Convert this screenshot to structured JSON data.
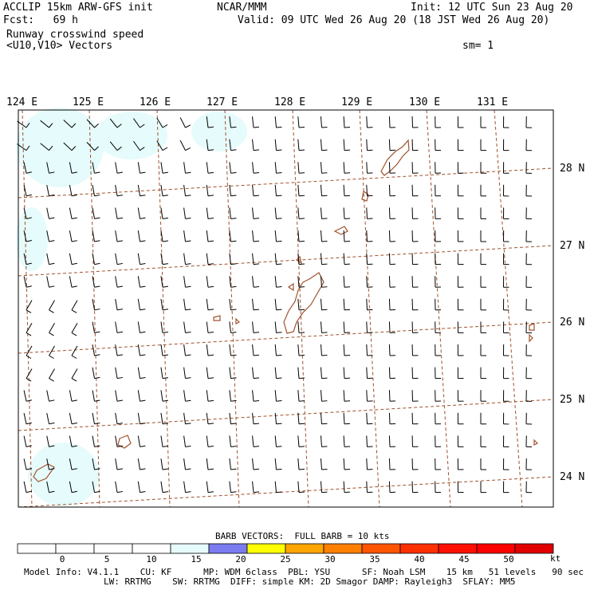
{
  "header": {
    "model": "ACCLIP 15km ARW-GFS init",
    "org": "NCAR/MMM",
    "init": "Init: 12 UTC Sun 23 Aug 20",
    "fcst": "Fcst:   69 h",
    "valid": "Valid: 09 UTC Wed 26 Aug 20 (18 JST Wed 26 Aug 20)",
    "field": "Runway crosswind speed",
    "vectors": "<U10,V10> Vectors",
    "smoothing": "sm= 1"
  },
  "map": {
    "lon_labels": [
      "124 E",
      "125 E",
      "126 E",
      "127 E",
      "128 E",
      "129 E",
      "130 E",
      "131 E"
    ],
    "lat_labels": [
      "28 N",
      "27 N",
      "26 N",
      "25 N",
      "24 N"
    ],
    "colors": {
      "background": "#ffffff",
      "calm_shade": "#e6fbfb",
      "coastline": "#a0522d",
      "gridline": "#a0522d",
      "barb": "#000000"
    }
  },
  "legend": {
    "title": "BARB VECTORS:  FULL BARB = 10 kts",
    "ticks": [
      "0",
      "5",
      "10",
      "15",
      "20",
      "25",
      "30",
      "35",
      "40",
      "45",
      "50"
    ],
    "unit": "kt",
    "colors": [
      "#ffffff",
      "#ffffff",
      "#ffffff",
      "#ffffff",
      "#e6fbfb",
      "#7b7bf0",
      "#ffff00",
      "#ffa500",
      "#ff7f00",
      "#ff5500",
      "#ff3000",
      "#ff1000",
      "#ff0000",
      "#e00000"
    ]
  },
  "footer": {
    "line1": "Model Info: V4.1.1    CU: KF      MP: WDM 6class  PBL: YSU      SF: Noah LSM    15 km   51 levels   90 sec",
    "line2": "LW: RRTMG    SW: RRTMG  DIFF: simple KM: 2D Smagor DAMP: Rayleigh3  SFLAY: MM5"
  }
}
